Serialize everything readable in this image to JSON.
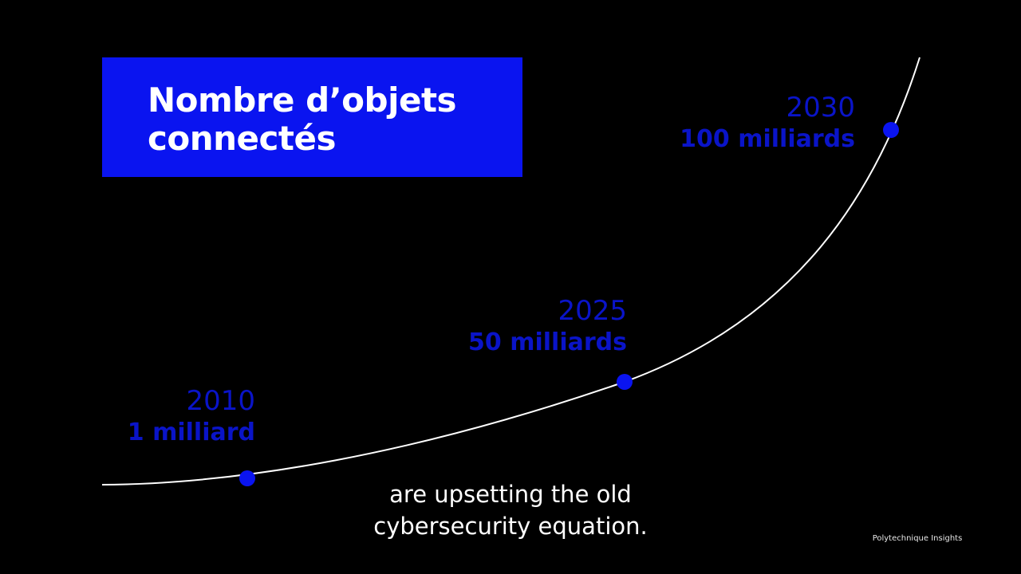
{
  "title": {
    "line1": "Nombre d’objets",
    "line2": "connectés"
  },
  "caption": {
    "line1": "are upsetting the old",
    "line2": "cybersecurity equation."
  },
  "watermark": "Polytechnique Insights",
  "colors": {
    "background": "#000000",
    "accent_blue": "#0a14f0",
    "label_blue": "#0a14c8",
    "curve": "#ffffff"
  },
  "chart_data": {
    "type": "line",
    "title": "Nombre d’objets connectés",
    "xlabel": "",
    "ylabel": "",
    "grid": false,
    "x": [
      2010,
      2025,
      2030
    ],
    "points": [
      {
        "year": "2010",
        "label": "1 milliard",
        "value": 1
      },
      {
        "year": "2025",
        "label": "50 milliards",
        "value": 50
      },
      {
        "year": "2030",
        "label": "100 milliards",
        "value": 100
      }
    ]
  }
}
